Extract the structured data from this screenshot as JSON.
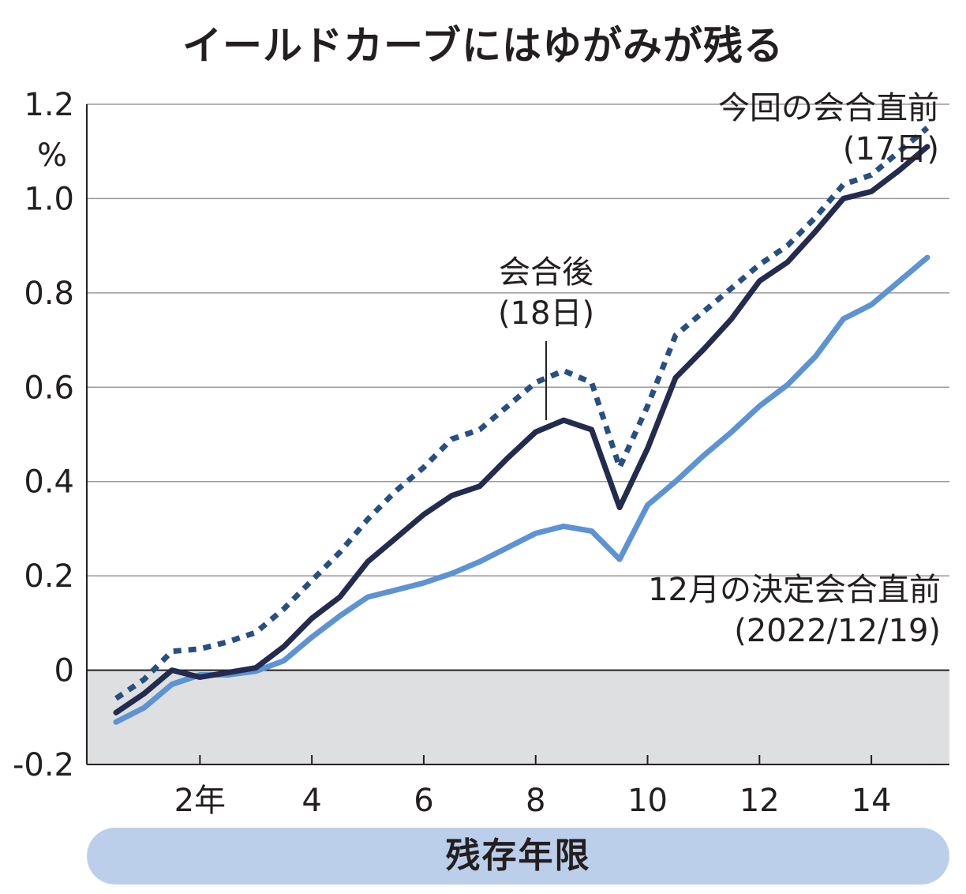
{
  "title": "イールドカーブにはゆがみが残る",
  "chart_data": {
    "type": "line",
    "title": "イールドカーブにはゆがみが残る",
    "xlabel": "残存年限",
    "ylabel": "%",
    "xlim": [
      0,
      15.5
    ],
    "ylim": [
      -0.2,
      1.2
    ],
    "yticks": [
      "-0.2",
      "0",
      "0.2",
      "0.4",
      "0.6",
      "0.8",
      "1.0",
      "1.2"
    ],
    "ytick_values": [
      -0.2,
      0,
      0.2,
      0.4,
      0.6,
      0.8,
      1.0,
      1.2
    ],
    "xticks": [
      "2年",
      "4",
      "6",
      "8",
      "10",
      "12",
      "14"
    ],
    "xtick_values": [
      2,
      4,
      6,
      8,
      10,
      12,
      14
    ],
    "grid": true,
    "negative_region_color": "#dedfe0",
    "series": [
      {
        "name": "今回の会合直前(17日)",
        "style": "dotted",
        "color": "#274f82",
        "x": [
          0.5,
          1,
          1.5,
          2,
          2.5,
          3,
          3.5,
          4,
          4.5,
          5,
          5.5,
          6,
          6.5,
          7,
          7.5,
          8,
          8.5,
          9,
          9.5,
          10,
          10.5,
          11,
          11.5,
          12,
          12.5,
          13,
          13.5,
          14,
          14.5,
          15
        ],
        "values": [
          -0.06,
          -0.02,
          0.04,
          0.045,
          0.06,
          0.08,
          0.13,
          0.19,
          0.25,
          0.32,
          0.38,
          0.43,
          0.49,
          0.51,
          0.56,
          0.61,
          0.635,
          0.61,
          0.43,
          0.56,
          0.71,
          0.76,
          0.81,
          0.86,
          0.9,
          0.96,
          1.03,
          1.05,
          1.1,
          1.15
        ]
      },
      {
        "name": "会合後(18日)",
        "style": "solid",
        "color": "#232b4f",
        "x": [
          0.5,
          1,
          1.5,
          2,
          2.5,
          3,
          3.5,
          4,
          4.5,
          5,
          5.5,
          6,
          6.5,
          7,
          7.5,
          8,
          8.5,
          9,
          9.5,
          10,
          10.5,
          11,
          11.5,
          12,
          12.5,
          13,
          13.5,
          14,
          14.5,
          15
        ],
        "values": [
          -0.09,
          -0.05,
          0.0,
          -0.015,
          -0.005,
          0.005,
          0.05,
          0.11,
          0.155,
          0.23,
          0.28,
          0.33,
          0.37,
          0.39,
          0.45,
          0.505,
          0.53,
          0.51,
          0.345,
          0.47,
          0.62,
          0.68,
          0.745,
          0.825,
          0.865,
          0.93,
          1.0,
          1.015,
          1.06,
          1.11
        ]
      },
      {
        "name": "12月の決定会合直前(2022/12/19)",
        "style": "solid",
        "color": "#5d93d3",
        "x": [
          0.5,
          1,
          1.5,
          2,
          2.5,
          3,
          3.5,
          4,
          4.5,
          5,
          5.5,
          6,
          6.5,
          7,
          7.5,
          8,
          8.5,
          9,
          9.5,
          10,
          10.5,
          11,
          11.5,
          12,
          12.5,
          13,
          13.5,
          14,
          14.5,
          15
        ],
        "values": [
          -0.11,
          -0.08,
          -0.03,
          -0.01,
          -0.01,
          -0.002,
          0.02,
          0.07,
          0.115,
          0.155,
          0.17,
          0.185,
          0.205,
          0.23,
          0.26,
          0.29,
          0.305,
          0.295,
          0.235,
          0.35,
          0.4,
          0.455,
          0.505,
          0.56,
          0.605,
          0.665,
          0.745,
          0.775,
          0.825,
          0.875
        ]
      }
    ],
    "annotations": [
      {
        "lines": [
          "今回の会合直前",
          "(17日)"
        ]
      },
      {
        "lines": [
          "会合後",
          "(18日)"
        ]
      },
      {
        "lines": [
          "12月の決定会合直前",
          "(2022/12/19)"
        ]
      }
    ]
  }
}
